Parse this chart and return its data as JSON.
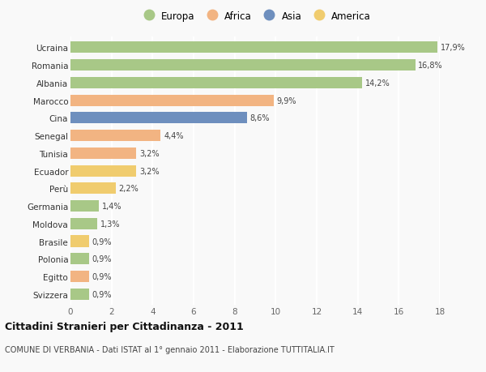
{
  "countries": [
    "Svizzera",
    "Egitto",
    "Polonia",
    "Brasile",
    "Moldova",
    "Germania",
    "Perù",
    "Ecuador",
    "Tunisia",
    "Senegal",
    "Cina",
    "Marocco",
    "Albania",
    "Romania",
    "Ucraina"
  ],
  "values": [
    0.9,
    0.9,
    0.9,
    0.9,
    1.3,
    1.4,
    2.2,
    3.2,
    3.2,
    4.4,
    8.6,
    9.9,
    14.2,
    16.8,
    17.9
  ],
  "labels": [
    "0,9%",
    "0,9%",
    "0,9%",
    "0,9%",
    "1,3%",
    "1,4%",
    "2,2%",
    "3,2%",
    "3,2%",
    "4,4%",
    "8,6%",
    "9,9%",
    "14,2%",
    "16,8%",
    "17,9%"
  ],
  "continent": [
    "Europa",
    "Africa",
    "Europa",
    "America",
    "Europa",
    "Europa",
    "America",
    "America",
    "Africa",
    "Africa",
    "Asia",
    "Africa",
    "Europa",
    "Europa",
    "Europa"
  ],
  "colors": {
    "Europa": "#a8c887",
    "Africa": "#f2b482",
    "Asia": "#6e8fbe",
    "America": "#f0cc6e"
  },
  "legend_order": [
    "Europa",
    "Africa",
    "Asia",
    "America"
  ],
  "xlim": [
    0,
    18
  ],
  "xticks": [
    0,
    2,
    4,
    6,
    8,
    10,
    12,
    14,
    16,
    18
  ],
  "title": "Cittadini Stranieri per Cittadinanza - 2011",
  "subtitle": "COMUNE DI VERBANIA - Dati ISTAT al 1° gennaio 2011 - Elaborazione TUTTITALIA.IT",
  "background_color": "#f9f9f9",
  "grid_color": "#ffffff",
  "bar_height": 0.65
}
